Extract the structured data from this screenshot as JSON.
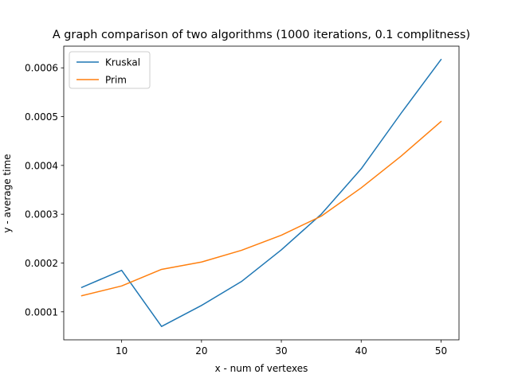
{
  "chart_data": {
    "type": "line",
    "title": "A graph comparison of two algorithms (1000 iterations, 0.1 complitness)",
    "xlabel": "x - num of vertexes",
    "ylabel": "y - average time",
    "xlim": [
      2.75,
      52.25
    ],
    "ylim": [
      4.26e-05,
      0.0006444
    ],
    "xticks": [
      10,
      20,
      30,
      40,
      50
    ],
    "xtick_labels": [
      "10",
      "20",
      "30",
      "40",
      "50"
    ],
    "yticks": [
      0.0001,
      0.0002,
      0.0003,
      0.0004,
      0.0005,
      0.0006
    ],
    "ytick_labels": [
      "0.0001",
      "0.0002",
      "0.0003",
      "0.0004",
      "0.0005",
      "0.0006"
    ],
    "grid": false,
    "legend_position": "top-left",
    "x": [
      5,
      10,
      15,
      20,
      25,
      30,
      35,
      40,
      45,
      50
    ],
    "series": [
      {
        "name": "Kruskal",
        "color": "#1f77b4",
        "values": [
          0.00015,
          0.000185,
          7e-05,
          0.000113,
          0.000162,
          0.000227,
          0.0003,
          0.000393,
          0.000507,
          0.000617
        ]
      },
      {
        "name": "Prim",
        "color": "#ff7f0e",
        "values": [
          0.000133,
          0.000153,
          0.000187,
          0.000202,
          0.000226,
          0.000257,
          0.000296,
          0.000354,
          0.000419,
          0.00049
        ]
      }
    ]
  }
}
